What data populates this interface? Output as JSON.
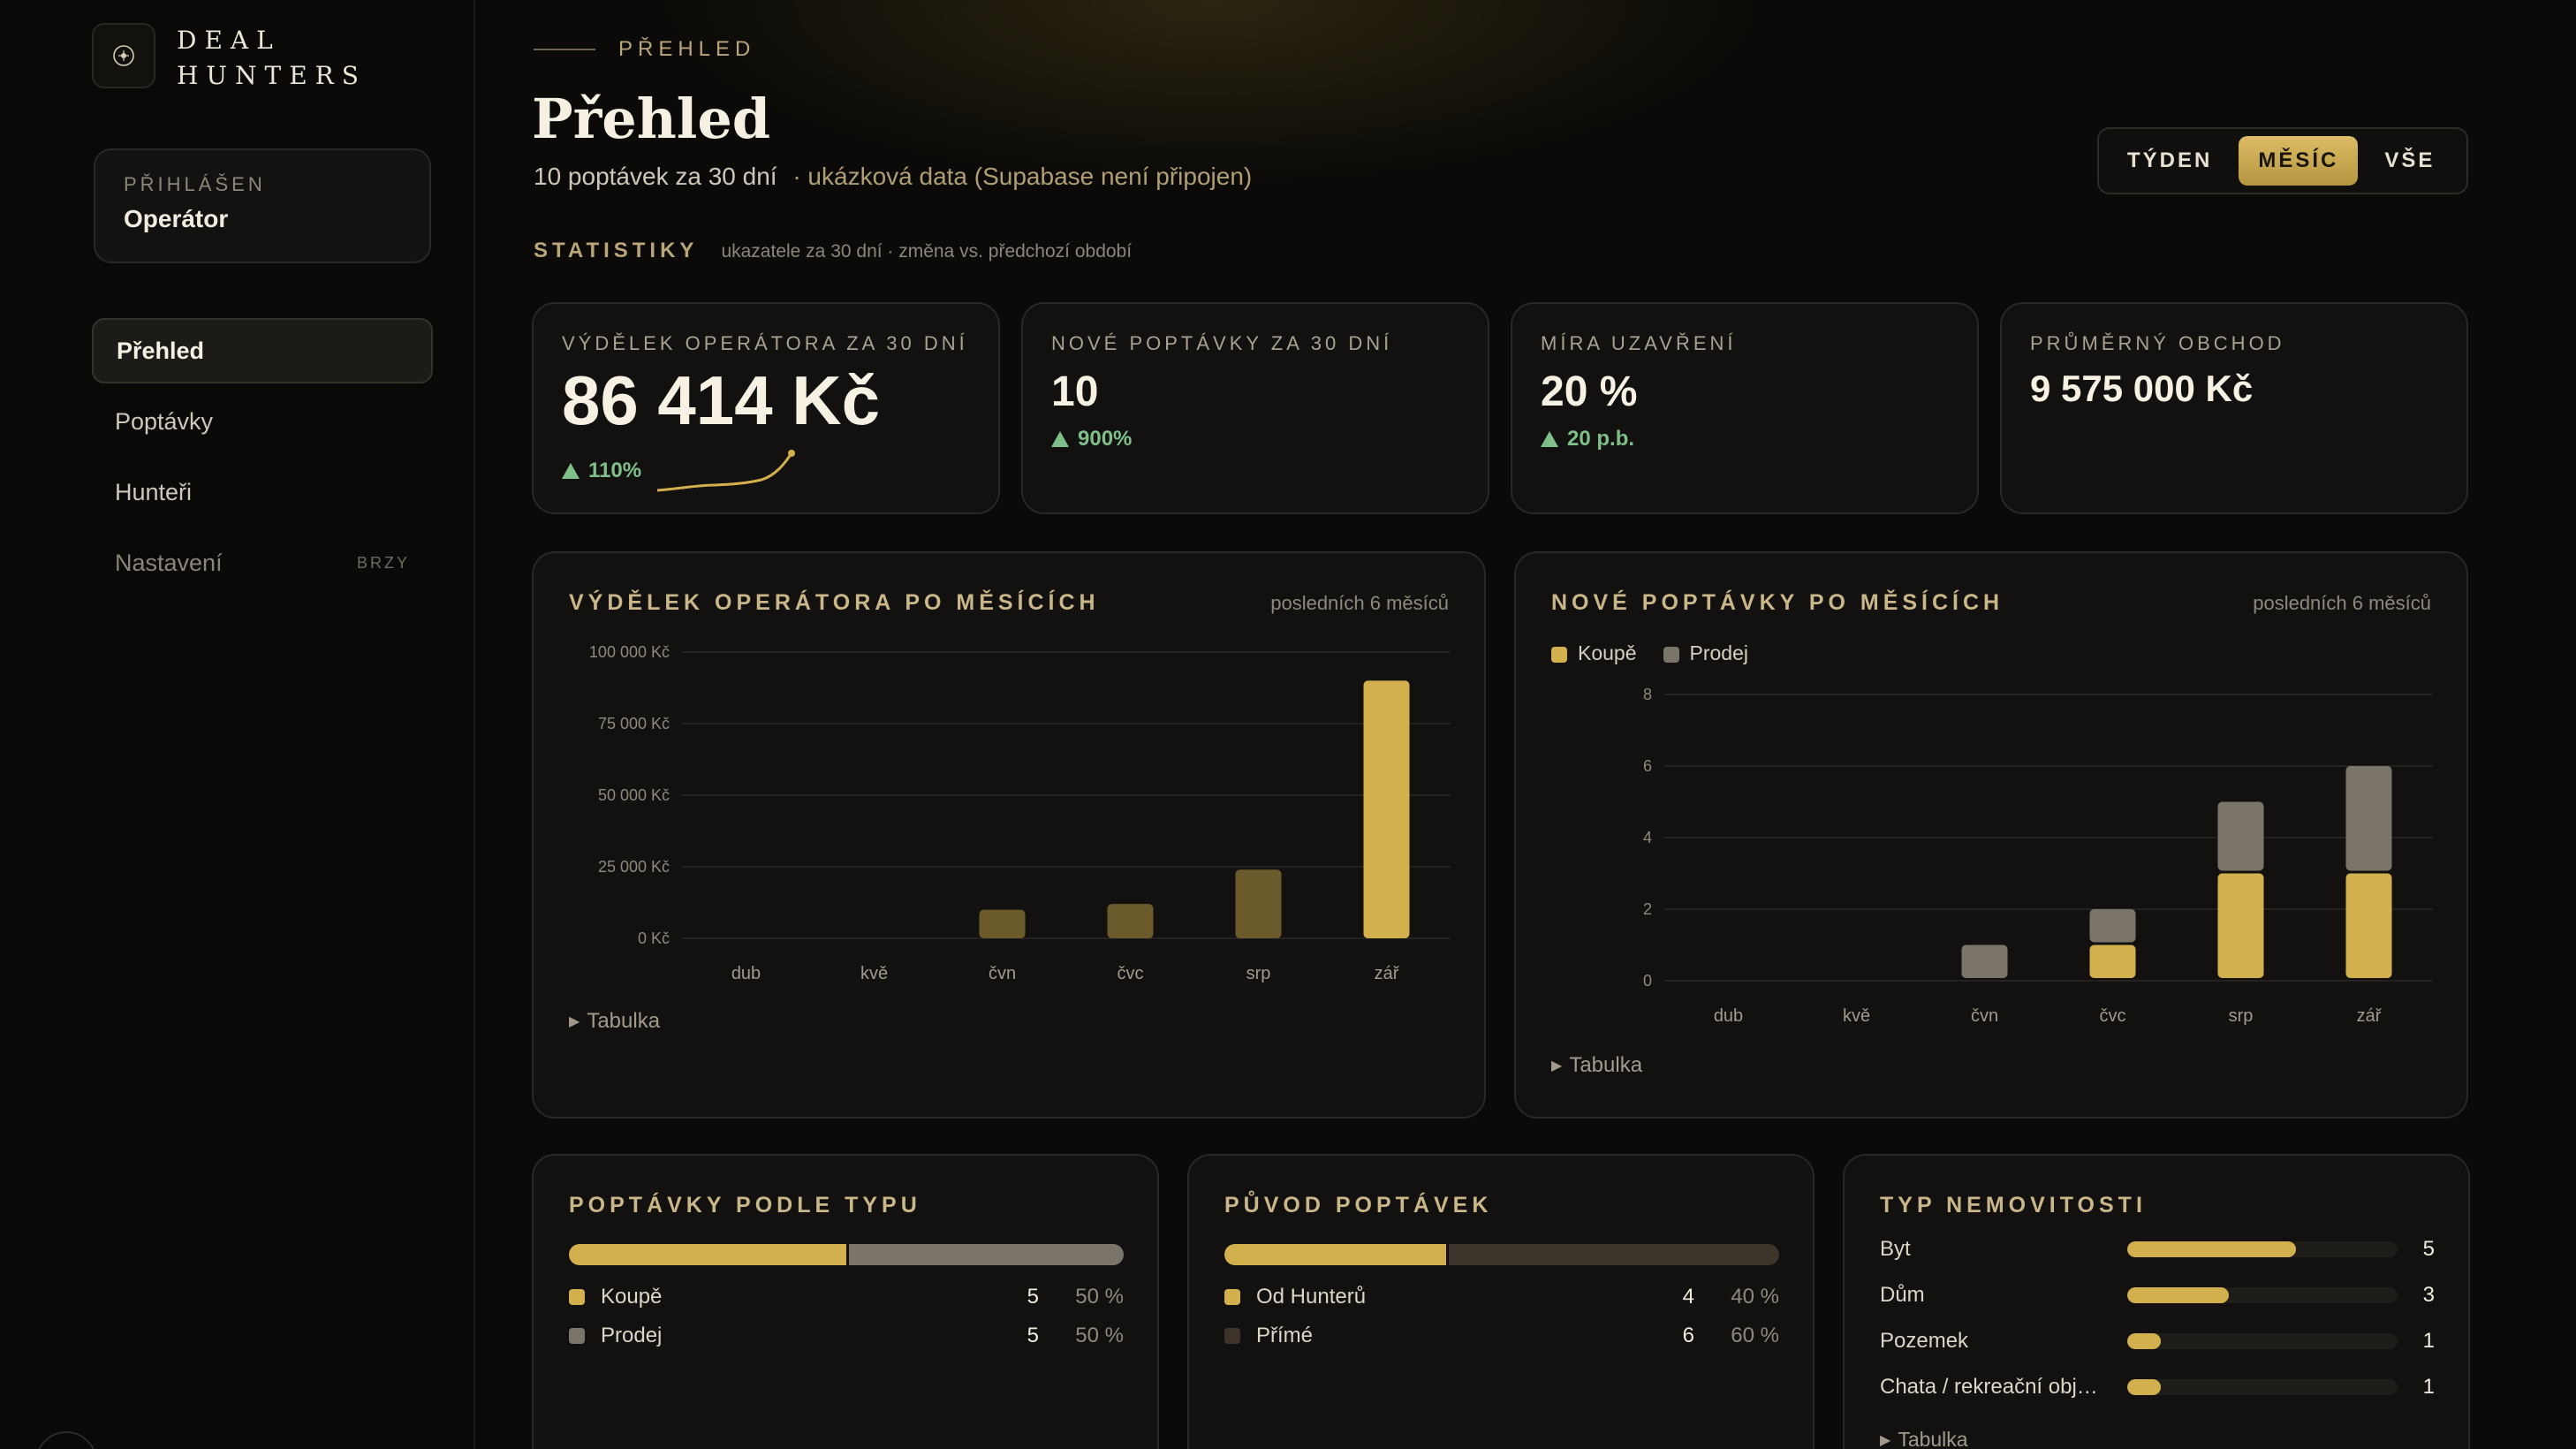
{
  "brand": {
    "line1": "DEAL",
    "line2": "HUNTERS"
  },
  "user": {
    "label": "PŘIHLÁŠEN",
    "name": "Operátor"
  },
  "nav": [
    {
      "label": "Přehled",
      "active": true
    },
    {
      "label": "Poptávky"
    },
    {
      "label": "Hunteři"
    },
    {
      "label": "Nastavení",
      "badge": "BRZY"
    }
  ],
  "header": {
    "eyebrow": "PŘEHLED",
    "title": "Přehled",
    "subtitle": "10 poptávek za 30 dní",
    "note": "· ukázková data (Supabase není připojen)"
  },
  "range": {
    "options": [
      "TÝDEN",
      "MĚSÍC",
      "VŠE"
    ],
    "selected": "MĚSÍC"
  },
  "stats": {
    "title": "STATISTIKY",
    "subtitle": "ukazatele za 30 dní · změna vs. předchozí období",
    "cards": [
      {
        "label": "VÝDĚLEK OPERÁTORA ZA 30 DNÍ",
        "value": "86 414 Kč",
        "delta": "110%"
      },
      {
        "label": "NOVÉ POPTÁVKY ZA 30 DNÍ",
        "value": "10",
        "delta": "900%"
      },
      {
        "label": "MÍRA UZAVŘENÍ",
        "value": "20 %",
        "delta": "20 p.b."
      },
      {
        "label": "PRŮMĚRNÝ OBCHOD",
        "value": "9 575 000 Kč"
      }
    ]
  },
  "chart_data": [
    {
      "type": "bar",
      "title": "VÝDĚLEK OPERÁTORA PO MĚSÍCÍCH",
      "range_label": "posledních 6 měsíců",
      "categories": [
        "dub",
        "kvě",
        "čvn",
        "čvc",
        "srp",
        "zář"
      ],
      "values": [
        0,
        0,
        10000,
        12000,
        24000,
        90000
      ],
      "ylim": [
        0,
        100000
      ],
      "yticks": [
        "100 000 Kč",
        "75 000 Kč",
        "50 000 Kč",
        "25 000 Kč",
        "0 Kč"
      ],
      "grid": true,
      "colors": {
        "past": "#6b5a2c",
        "current": "#d3b04e"
      },
      "table_toggle": "Tabulka"
    },
    {
      "type": "bar",
      "stacked": true,
      "title": "NOVÉ POPTÁVKY PO MĚSÍCÍCH",
      "range_label": "posledních 6 měsíců",
      "categories": [
        "dub",
        "kvě",
        "čvn",
        "čvc",
        "srp",
        "zář"
      ],
      "series": [
        {
          "name": "Koupě",
          "values": [
            0,
            0,
            0,
            1,
            3,
            3
          ],
          "color": "#d3b04e"
        },
        {
          "name": "Prodej",
          "values": [
            0,
            0,
            1,
            1,
            2,
            3
          ],
          "color": "#7b746a"
        }
      ],
      "ylim": [
        0,
        8
      ],
      "yticks": [
        "8",
        "6",
        "4",
        "2",
        "0"
      ],
      "grid": true,
      "legend": "top-left",
      "table_toggle": "Tabulka"
    }
  ],
  "by_type": {
    "title": "POPTÁVKY PODLE TYPU",
    "rows": [
      {
        "name": "Koupě",
        "count": "5",
        "pct": "50 %",
        "share": 0.5,
        "color": "#d3b04e"
      },
      {
        "name": "Prodej",
        "count": "5",
        "pct": "50 %",
        "share": 0.5,
        "color": "#7b746a"
      }
    ]
  },
  "origin": {
    "title": "PŮVOD POPTÁVEK",
    "rows": [
      {
        "name": "Od Hunterů",
        "count": "4",
        "pct": "40 %",
        "share": 0.4,
        "color": "#d3b04e"
      },
      {
        "name": "Přímé",
        "count": "6",
        "pct": "60 %",
        "share": 0.6,
        "color": "#3d352c"
      }
    ]
  },
  "property": {
    "title": "TYP NEMOVITOSTI",
    "max": 8,
    "rows": [
      {
        "name": "Byt",
        "count": "5",
        "value": 5
      },
      {
        "name": "Dům",
        "count": "3",
        "value": 3
      },
      {
        "name": "Pozemek",
        "count": "1",
        "value": 1
      },
      {
        "name": "Chata / rekreační obj…",
        "count": "1",
        "value": 1
      }
    ],
    "table_toggle": "Tabulka"
  }
}
